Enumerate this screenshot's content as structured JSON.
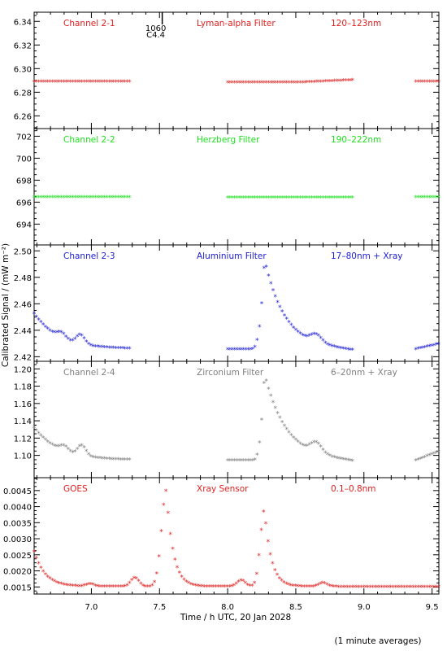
{
  "chart_data": {
    "type": "scatter",
    "x_range": [
      6.58,
      9.55
    ],
    "xticks": [
      7.0,
      7.5,
      8.0,
      8.5,
      9.0,
      9.5
    ],
    "xtick_labels": [
      "7.0",
      "7.5",
      "8.0",
      "8.5",
      "9.0",
      "9.5"
    ],
    "xlabel": "Time / h UTC, 20 Jan 2028",
    "ylabel": "Calibrated Signal / (mW m⁻²)",
    "footnote": "(1 minute averages)",
    "marker_annotation": {
      "x": 7.52,
      "label_top": "1060",
      "label_bottom": "C4.4"
    },
    "panels": [
      {
        "channel": "Channel 2-1",
        "filter": "Lyman-alpha Filter",
        "band": "120–123nm",
        "color": "#e02020",
        "ylim": [
          6.252,
          6.345
        ],
        "yticks": [
          6.26,
          6.28,
          6.3,
          6.32,
          6.34
        ],
        "ytick_labels": [
          "6.26",
          "6.28",
          "6.30",
          "6.32",
          "6.34"
        ],
        "segments": [
          [
            6.58,
            7.28
          ],
          [
            8.0,
            8.92
          ],
          [
            9.38,
            9.55
          ]
        ],
        "profile": "flat",
        "params": {
          "levels": [
            6.289,
            6.288,
            6.289
          ],
          "slope": 0.002
        }
      },
      {
        "channel": "Channel 2-2",
        "filter": "Herzberg Filter",
        "band": "190–222nm",
        "color": "#20e020",
        "ylim": [
          692.4,
          702.4
        ],
        "yticks": [
          694,
          696,
          698,
          700,
          702
        ],
        "ytick_labels": [
          "694",
          "696",
          "698",
          "700",
          "702"
        ],
        "segments": [
          [
            6.58,
            7.28
          ],
          [
            8.0,
            8.92
          ],
          [
            9.38,
            9.55
          ]
        ],
        "profile": "flat",
        "params": {
          "levels": [
            696.45,
            696.4,
            696.45
          ],
          "slope": 0
        }
      },
      {
        "channel": "Channel 2-3",
        "filter": "Aluminium Filter",
        "band": "17–80nm + Xray",
        "color": "#1c1cd6",
        "ylim": [
          2.419,
          2.502
        ],
        "yticks": [
          2.42,
          2.44,
          2.46,
          2.48,
          2.5
        ],
        "ytick_labels": [
          "2.42",
          "2.44",
          "2.46",
          "2.48",
          "2.50"
        ],
        "segments": [
          [
            6.58,
            7.28
          ],
          [
            8.0,
            8.92
          ],
          [
            9.38,
            9.55
          ]
        ],
        "profile": "flare",
        "params": {
          "base": 2.4255,
          "early": 0.027,
          "bumps": [
            [
              6.92,
              0.007
            ],
            [
              6.78,
              0.004
            ]
          ],
          "peak_t": 8.27,
          "peak": 0.068,
          "pre_t": 8.17,
          "decay": 0.15,
          "bump2": [
            8.65,
            0.006
          ],
          "late_rise": 0.004
        }
      },
      {
        "channel": "Channel 2-4",
        "filter": "Zirconium Filter",
        "band": "6–20nm + Xray",
        "color": "#808080",
        "ylim": [
          1.078,
          1.205
        ],
        "yticks": [
          1.1,
          1.12,
          1.14,
          1.16,
          1.18,
          1.2
        ],
        "ytick_labels": [
          "1.10",
          "1.12",
          "1.14",
          "1.16",
          "1.18",
          "1.20"
        ],
        "segments": [
          [
            6.58,
            7.28
          ],
          [
            8.0,
            8.92
          ],
          [
            9.38,
            9.55
          ]
        ],
        "profile": "flare",
        "params": {
          "base": 1.094,
          "early": 0.038,
          "bumps": [
            [
              6.93,
              0.012
            ],
            [
              6.8,
              0.006
            ]
          ],
          "peak_t": 8.27,
          "peak": 0.1,
          "pre_t": 8.18,
          "decay": 0.16,
          "bump2": [
            8.65,
            0.012
          ],
          "late_rise": 0.01
        }
      },
      {
        "channel": "GOES",
        "filter": "Xray Sensor",
        "band": "0.1–0.8nm",
        "color": "#e02020",
        "ylim": [
          0.00138,
          0.0048
        ],
        "yticks": [
          0.0015,
          0.002,
          0.0025,
          0.003,
          0.0035,
          0.004,
          0.0045
        ],
        "ytick_labels": [
          "0.0015",
          "0.0020",
          "0.0025",
          "0.0030",
          "0.0035",
          "0.0040",
          "0.0045"
        ],
        "segments": [
          [
            6.58,
            9.55
          ]
        ],
        "profile": "goes",
        "params": {
          "base": 0.0015,
          "early": 0.0011,
          "flares": [
            [
              7.55,
              0.003,
              0.035,
              0.05
            ],
            [
              8.27,
              0.0024,
              0.03,
              0.05
            ]
          ],
          "bumps": [
            [
              7.32,
              0.00028
            ],
            [
              8.1,
              0.0002
            ],
            [
              8.7,
              0.00012
            ],
            [
              6.99,
              8e-05
            ]
          ]
        }
      }
    ]
  }
}
